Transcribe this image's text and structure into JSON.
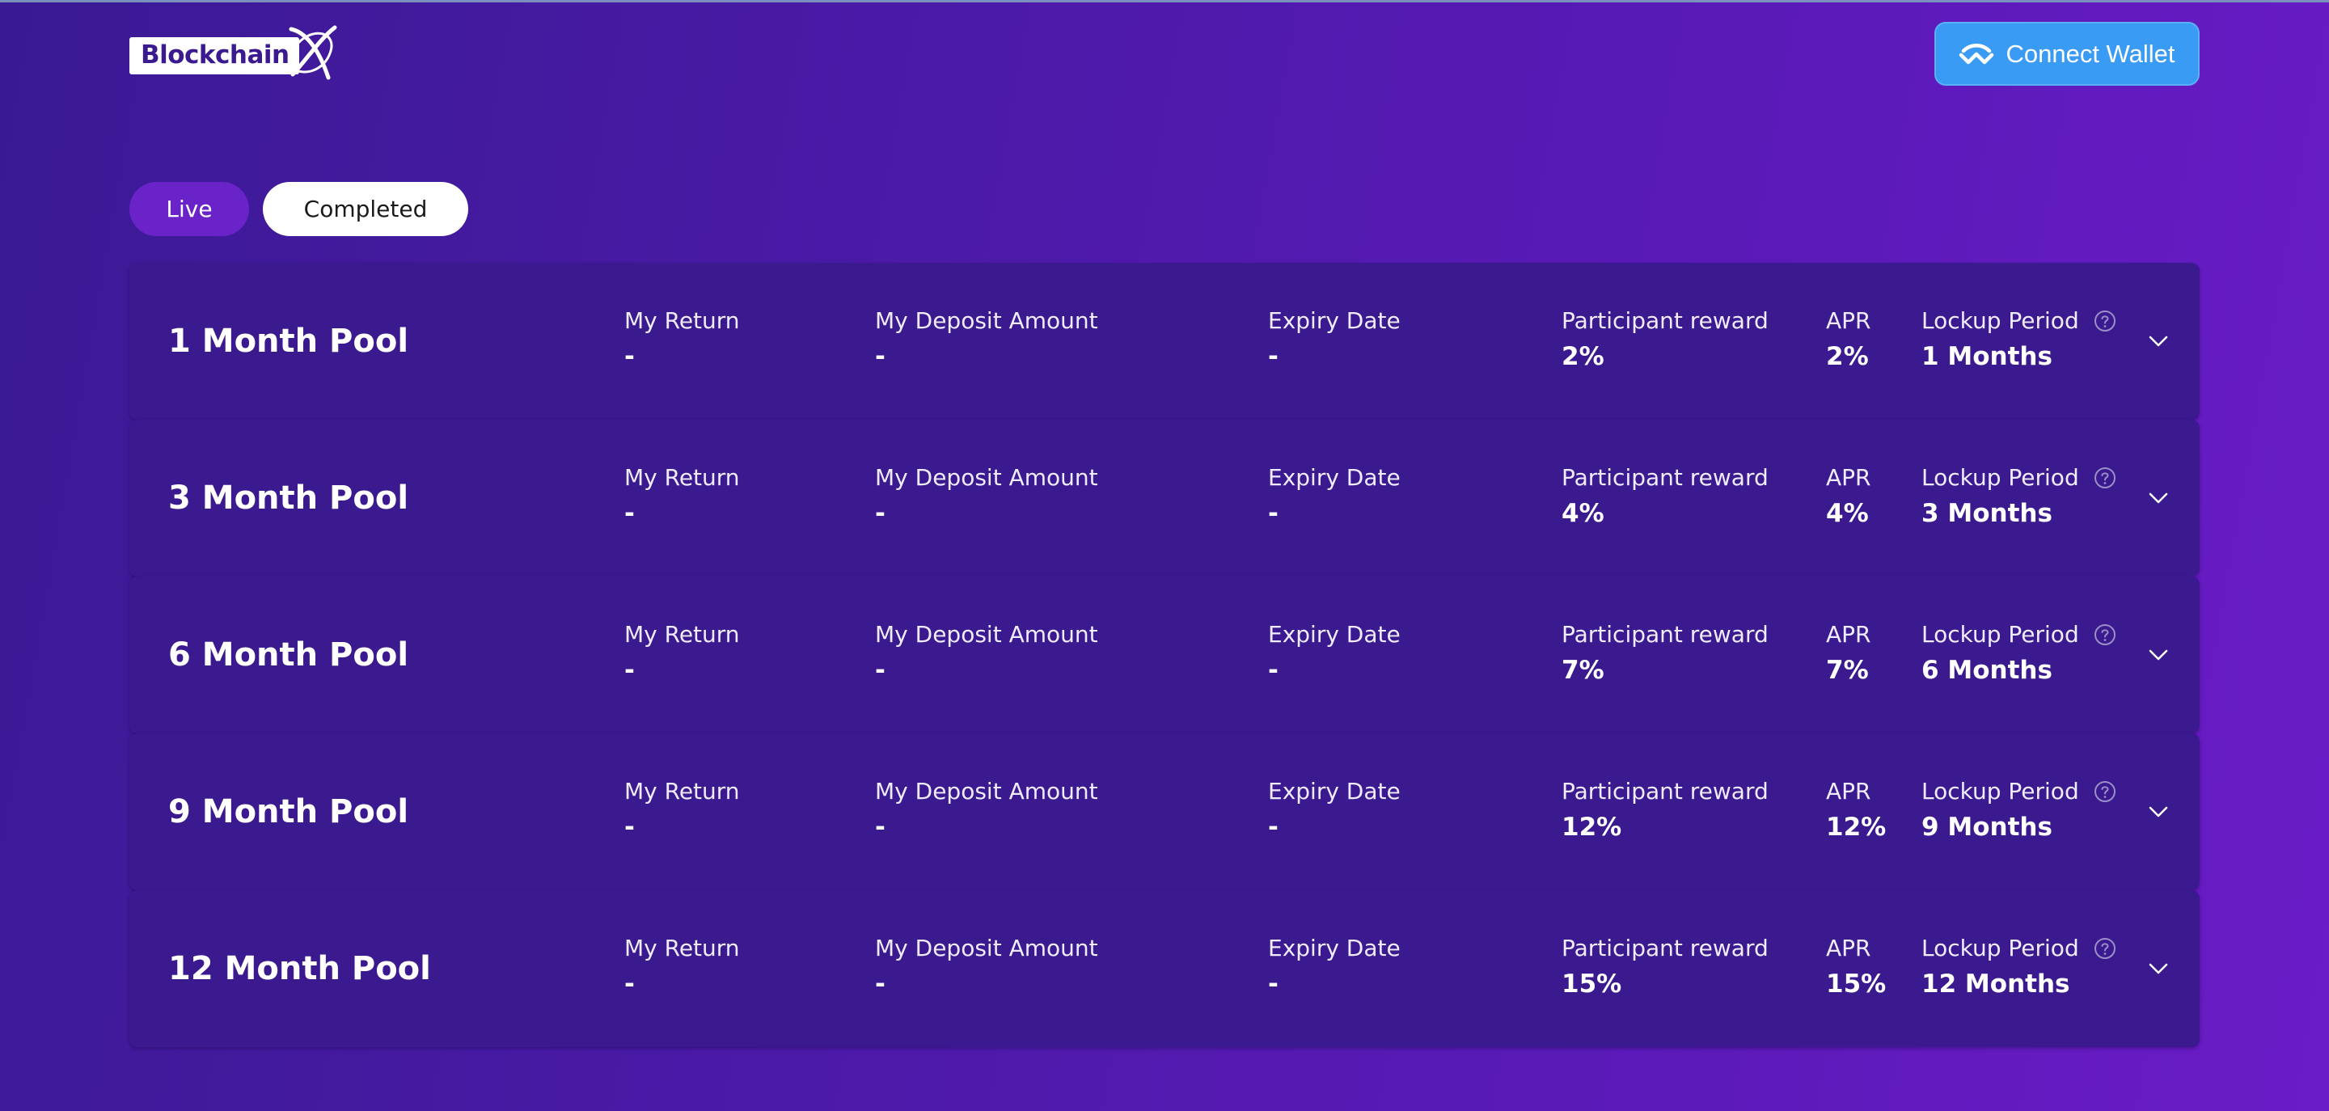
{
  "header": {
    "logo_text": "Blockchain",
    "logo_icon": "x-swoosh-logo-icon",
    "connect_wallet_label": "Connect Wallet",
    "connect_wallet_icon": "walletconnect-icon",
    "connect_wallet_color": "#3a9bf5"
  },
  "tabs": [
    {
      "label": "Live",
      "active": true
    },
    {
      "label": "Completed",
      "active": false
    }
  ],
  "columns": {
    "my_return": "My Return",
    "my_deposit": "My Deposit Amount",
    "expiry": "Expiry Date",
    "participant_reward": "Participant reward",
    "apr": "APR",
    "lockup": "Lockup Period"
  },
  "pools": [
    {
      "name": "1 Month Pool",
      "my_return": "-",
      "my_deposit": "-",
      "expiry": "-",
      "participant_reward": "2%",
      "apr": "2%",
      "lockup": "1 Months"
    },
    {
      "name": "3 Month Pool",
      "my_return": "-",
      "my_deposit": "-",
      "expiry": "-",
      "participant_reward": "4%",
      "apr": "4%",
      "lockup": "3 Months"
    },
    {
      "name": "6 Month Pool",
      "my_return": "-",
      "my_deposit": "-",
      "expiry": "-",
      "participant_reward": "7%",
      "apr": "7%",
      "lockup": "6 Months"
    },
    {
      "name": "9 Month Pool",
      "my_return": "-",
      "my_deposit": "-",
      "expiry": "-",
      "participant_reward": "12%",
      "apr": "12%",
      "lockup": "9 Months"
    },
    {
      "name": "12 Month Pool",
      "my_return": "-",
      "my_deposit": "-",
      "expiry": "-",
      "participant_reward": "15%",
      "apr": "15%",
      "lockup": "12 Months"
    }
  ]
}
